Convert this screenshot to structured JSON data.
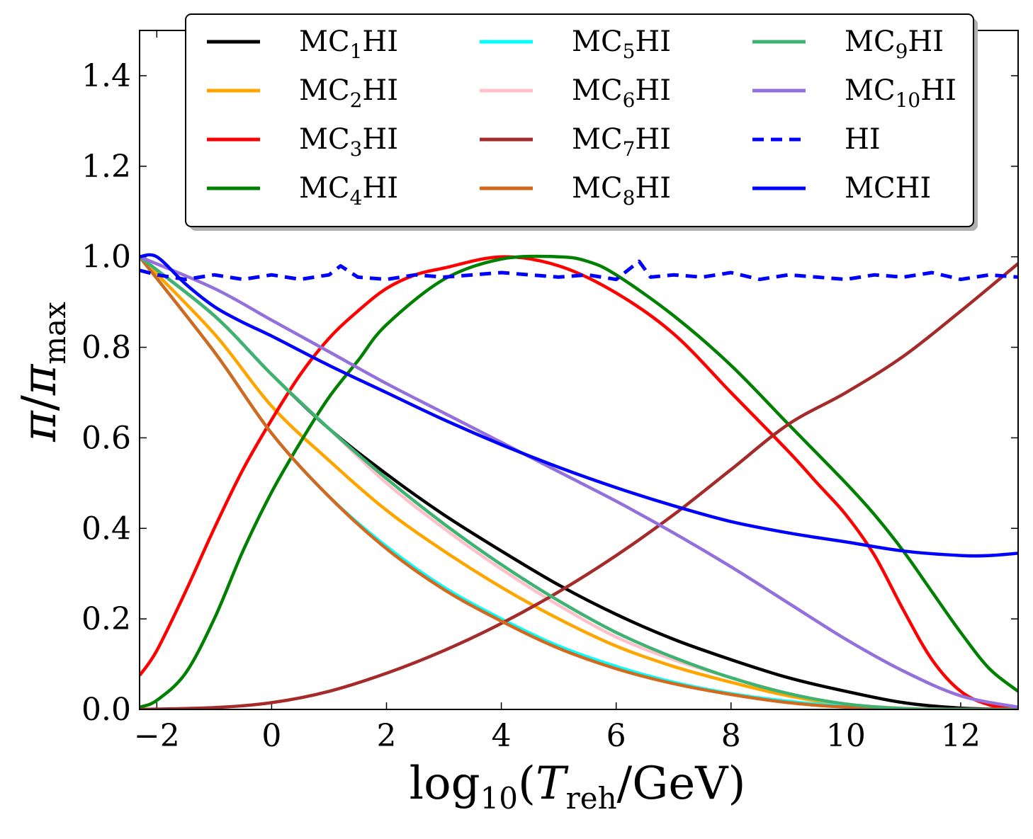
{
  "chart_data": {
    "type": "line",
    "xlabel": {
      "main": "log",
      "sub": "10",
      "open": "(",
      "var": "T",
      "var_sub": "reh",
      "rest": "/GeV)"
    },
    "ylabel": {
      "var": "π",
      "slash": "/",
      "var2": "π",
      "sub": "max"
    },
    "xlim": [
      -2.3,
      13.0
    ],
    "ylim": [
      0.0,
      1.5
    ],
    "xticks": [
      -2,
      0,
      2,
      4,
      6,
      8,
      10,
      12
    ],
    "xtick_labels": [
      "−2",
      "0",
      "2",
      "4",
      "6",
      "8",
      "10",
      "12"
    ],
    "yticks": [
      0.0,
      0.2,
      0.4,
      0.6,
      0.8,
      1.0,
      1.2,
      1.4
    ],
    "ytick_labels": [
      "0.0",
      "0.2",
      "0.4",
      "0.6",
      "0.8",
      "1.0",
      "1.2",
      "1.4"
    ],
    "series": [
      {
        "name": "MC1HI",
        "label": {
          "pre": "MC",
          "sub": "1",
          "post": "HI"
        },
        "color": "#000000",
        "dash": false,
        "x": [
          -2.3,
          -1,
          0,
          1,
          2,
          3,
          4,
          5,
          6,
          7,
          8,
          9,
          10,
          11,
          12,
          13
        ],
        "y": [
          1.0,
          0.87,
          0.74,
          0.62,
          0.52,
          0.43,
          0.35,
          0.275,
          0.21,
          0.155,
          0.11,
          0.07,
          0.04,
          0.015,
          0.003,
          0.0
        ]
      },
      {
        "name": "MC2HI",
        "label": {
          "pre": "MC",
          "sub": "2",
          "post": "HI"
        },
        "color": "#ffa500",
        "dash": false,
        "x": [
          -2.3,
          -1,
          0,
          1,
          2,
          3,
          4,
          5,
          6,
          7,
          8,
          9,
          10,
          11,
          12,
          13
        ],
        "y": [
          1.0,
          0.83,
          0.67,
          0.55,
          0.44,
          0.35,
          0.27,
          0.2,
          0.14,
          0.095,
          0.06,
          0.03,
          0.01,
          0.003,
          0.0,
          0.0
        ]
      },
      {
        "name": "MC3HI",
        "label": {
          "pre": "MC",
          "sub": "3",
          "post": "HI"
        },
        "color": "#ff0000",
        "dash": false,
        "x": [
          -2.3,
          -2,
          -1.5,
          -1,
          -0.5,
          0,
          0.5,
          1,
          1.5,
          2,
          2.5,
          3,
          4,
          5,
          6,
          7,
          8,
          9,
          9.5,
          10,
          10.5,
          11,
          11.5,
          12,
          12.5,
          13
        ],
        "y": [
          0.075,
          0.13,
          0.26,
          0.4,
          0.53,
          0.64,
          0.74,
          0.82,
          0.88,
          0.93,
          0.96,
          0.975,
          1.0,
          0.98,
          0.92,
          0.83,
          0.7,
          0.57,
          0.5,
          0.43,
          0.34,
          0.22,
          0.11,
          0.04,
          0.01,
          0.0
        ]
      },
      {
        "name": "MC4HI",
        "label": {
          "pre": "MC",
          "sub": "4",
          "post": "HI"
        },
        "color": "#008000",
        "dash": false,
        "x": [
          -2.3,
          -2,
          -1.5,
          -1,
          -0.5,
          0,
          0.5,
          1,
          1.5,
          2,
          3,
          4,
          5,
          5.5,
          6,
          7,
          8,
          9,
          10,
          10.5,
          11,
          11.5,
          12,
          12.5,
          13
        ],
        "y": [
          0.005,
          0.02,
          0.08,
          0.2,
          0.35,
          0.48,
          0.59,
          0.69,
          0.77,
          0.85,
          0.95,
          0.995,
          1.0,
          0.99,
          0.96,
          0.87,
          0.76,
          0.63,
          0.5,
          0.43,
          0.35,
          0.26,
          0.17,
          0.09,
          0.04
        ]
      },
      {
        "name": "MC5HI",
        "label": {
          "pre": "MC",
          "sub": "5",
          "post": "HI"
        },
        "color": "#00ffff",
        "dash": false,
        "x": [
          -2.3,
          -1,
          0,
          1,
          2,
          3,
          4,
          5,
          6,
          7,
          8,
          9,
          10,
          11,
          12,
          13
        ],
        "y": [
          1.0,
          0.79,
          0.61,
          0.47,
          0.36,
          0.27,
          0.2,
          0.14,
          0.095,
          0.06,
          0.035,
          0.018,
          0.007,
          0.002,
          0.0,
          0.0
        ]
      },
      {
        "name": "MC6HI",
        "label": {
          "pre": "MC",
          "sub": "6",
          "post": "HI"
        },
        "color": "#ffc0cb",
        "dash": false,
        "x": [
          -2.3,
          -1,
          0,
          1,
          2,
          3,
          4,
          5,
          6,
          7,
          8,
          9,
          10,
          11,
          12,
          13
        ],
        "y": [
          1.0,
          0.87,
          0.74,
          0.62,
          0.5,
          0.4,
          0.31,
          0.23,
          0.16,
          0.11,
          0.07,
          0.035,
          0.012,
          0.003,
          0.0,
          0.0
        ]
      },
      {
        "name": "MC7HI",
        "label": {
          "pre": "MC",
          "sub": "7",
          "post": "HI"
        },
        "color": "#a52a2a",
        "dash": false,
        "x": [
          -2.3,
          -1,
          0,
          1,
          2,
          3,
          4,
          5,
          6,
          7,
          8,
          9,
          10,
          11,
          12,
          13
        ],
        "y": [
          0.0,
          0.004,
          0.015,
          0.04,
          0.08,
          0.13,
          0.19,
          0.26,
          0.34,
          0.43,
          0.53,
          0.63,
          0.7,
          0.78,
          0.88,
          0.985
        ]
      },
      {
        "name": "MC8HI",
        "label": {
          "pre": "MC",
          "sub": "8",
          "post": "HI"
        },
        "color": "#d2691e",
        "dash": false,
        "x": [
          -2.3,
          -1,
          0,
          1,
          2,
          3,
          4,
          5,
          6,
          7,
          8,
          9,
          10,
          11,
          12,
          13
        ],
        "y": [
          1.0,
          0.79,
          0.61,
          0.47,
          0.355,
          0.265,
          0.195,
          0.135,
          0.09,
          0.057,
          0.033,
          0.015,
          0.005,
          0.001,
          0.0,
          0.0
        ]
      },
      {
        "name": "MC9HI",
        "label": {
          "pre": "MC",
          "sub": "9",
          "post": "HI"
        },
        "color": "#3cb371",
        "dash": false,
        "x": [
          -2.3,
          -1,
          0,
          1,
          2,
          3,
          4,
          5,
          6,
          7,
          8,
          9,
          10,
          11,
          12,
          13
        ],
        "y": [
          1.0,
          0.87,
          0.74,
          0.62,
          0.51,
          0.41,
          0.32,
          0.24,
          0.17,
          0.115,
          0.07,
          0.035,
          0.012,
          0.002,
          0.0,
          0.0
        ]
      },
      {
        "name": "MC10HI",
        "label": {
          "pre": "MC",
          "sub": "10",
          "post": "HI"
        },
        "color": "#9370db",
        "dash": false,
        "x": [
          -2.3,
          -1,
          0,
          1,
          2,
          3,
          4,
          5,
          6,
          7,
          8,
          9,
          10,
          11,
          12,
          13
        ],
        "y": [
          1.0,
          0.93,
          0.86,
          0.79,
          0.72,
          0.655,
          0.59,
          0.525,
          0.46,
          0.39,
          0.315,
          0.235,
          0.155,
          0.085,
          0.03,
          0.005
        ]
      },
      {
        "name": "HI",
        "label": {
          "pre": "HI",
          "sub": "",
          "post": ""
        },
        "color": "#0000ff",
        "dash": true,
        "x": [
          -2.3,
          -2,
          -1.5,
          -1,
          -0.5,
          0,
          0.5,
          1,
          1.2,
          1.5,
          2,
          2.5,
          3,
          3.5,
          4,
          4.5,
          5,
          5.5,
          6,
          6.4,
          6.6,
          7,
          7.5,
          8,
          8.5,
          9,
          9.5,
          10,
          10.5,
          11,
          11.5,
          12,
          12.5,
          13
        ],
        "y": [
          0.97,
          0.96,
          0.95,
          0.96,
          0.95,
          0.96,
          0.95,
          0.96,
          0.98,
          0.955,
          0.95,
          0.96,
          0.955,
          0.96,
          0.965,
          0.96,
          0.955,
          0.96,
          0.95,
          0.99,
          0.955,
          0.96,
          0.955,
          0.965,
          0.95,
          0.96,
          0.955,
          0.95,
          0.96,
          0.955,
          0.965,
          0.95,
          0.96,
          0.955
        ]
      },
      {
        "name": "MCHI",
        "label": {
          "pre": "MCHI",
          "sub": "",
          "post": ""
        },
        "color": "#0000ff",
        "dash": false,
        "x": [
          -2.3,
          -2,
          -1.5,
          -1,
          -0.5,
          0,
          1,
          2,
          3,
          4,
          5,
          6,
          7,
          8,
          9,
          10,
          11,
          12,
          12.5,
          13
        ],
        "y": [
          1.0,
          1.0,
          0.94,
          0.89,
          0.855,
          0.825,
          0.76,
          0.7,
          0.64,
          0.585,
          0.535,
          0.49,
          0.45,
          0.415,
          0.39,
          0.37,
          0.35,
          0.34,
          0.34,
          0.345
        ]
      }
    ]
  }
}
